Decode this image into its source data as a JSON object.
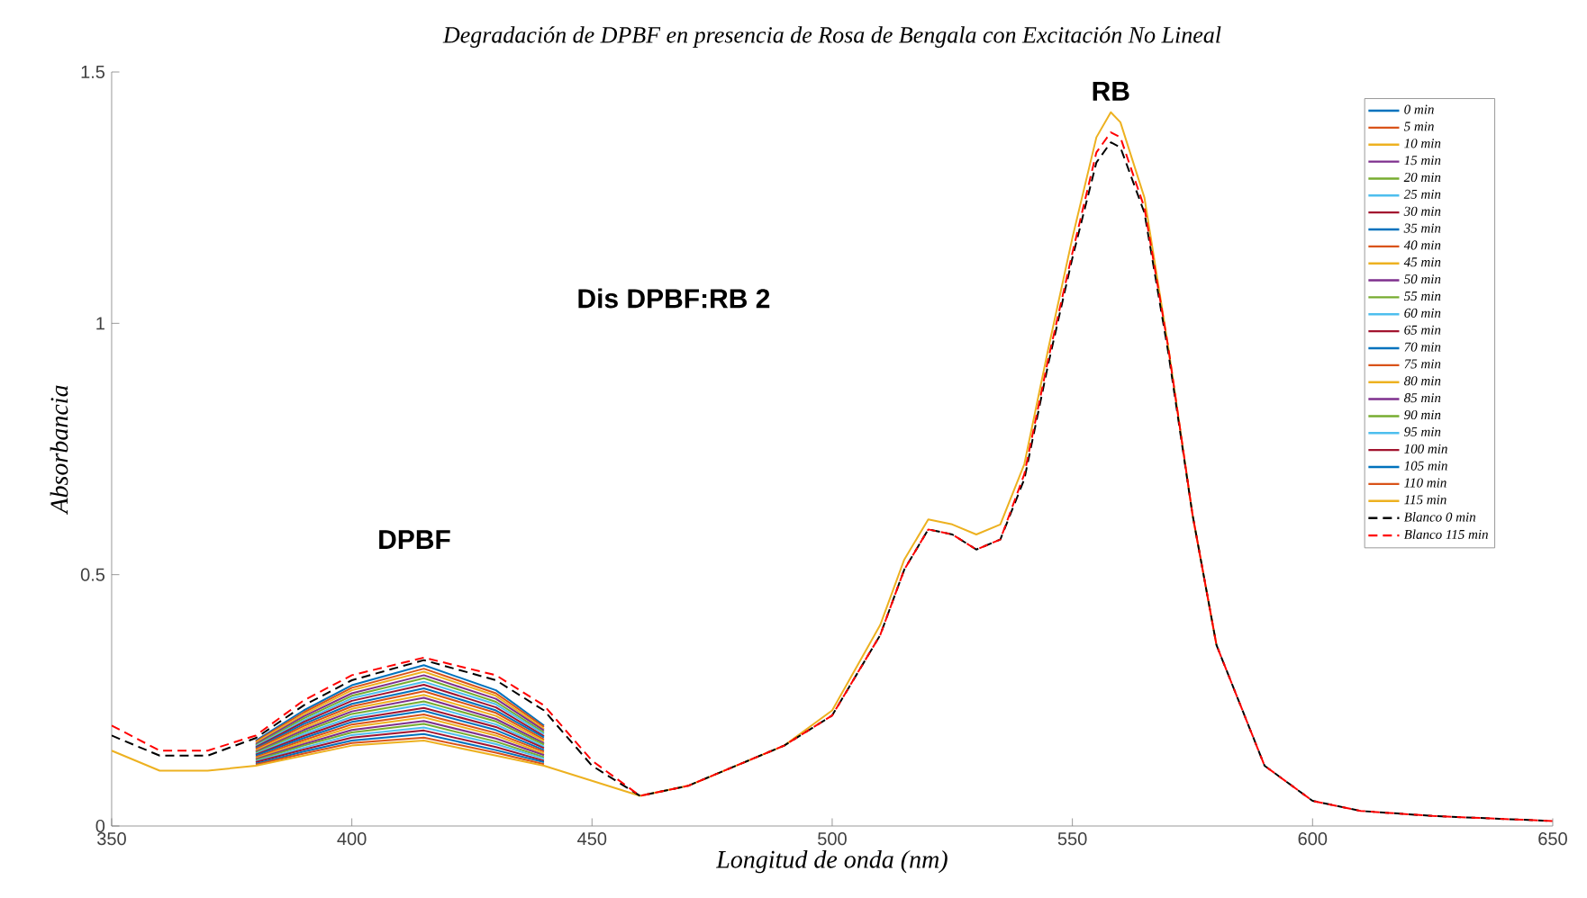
{
  "chart_data": {
    "type": "line",
    "title": "Degradación de DPBF en presencia de Rosa de Bengala con Excitación No Lineal",
    "xlabel": "Longitud de onda (nm)",
    "ylabel": "Absorbancia",
    "x": [
      350,
      360,
      370,
      380,
      390,
      400,
      415,
      430,
      440,
      450,
      460,
      470,
      480,
      490,
      500,
      510,
      515,
      520,
      525,
      530,
      535,
      540,
      545,
      550,
      555,
      558,
      560,
      565,
      570,
      575,
      580,
      590,
      600,
      610,
      625,
      650
    ],
    "xlim": [
      350,
      650
    ],
    "ylim": [
      0,
      1.5
    ],
    "xticks": [
      350,
      400,
      450,
      500,
      550,
      600,
      650
    ],
    "yticks": [
      0,
      0.5,
      1,
      1.5
    ],
    "legend": "top right",
    "annotations": [
      "Dis DPBF:RB 2",
      "DPBF",
      {
        "text": "RB",
        "x": 558,
        "y": 1.42
      }
    ],
    "series": [
      {
        "name": "0 min",
        "color": "#0072bd",
        "values": [
          null,
          null,
          null,
          0.17,
          0.23,
          0.28,
          0.32,
          0.27,
          0.2,
          null,
          null,
          null,
          null,
          null,
          null,
          null,
          null,
          null,
          null,
          null,
          null,
          null,
          null,
          null,
          null,
          null,
          null,
          null,
          null,
          null,
          null,
          null,
          null,
          null,
          null,
          null
        ]
      },
      {
        "name": "5 min",
        "color": "#d95319",
        "values": [
          null,
          null,
          null,
          0.168,
          0.226,
          0.275,
          0.313,
          0.264,
          0.197,
          null,
          null,
          null,
          null,
          null,
          null,
          null,
          null,
          null,
          null,
          null,
          null,
          null,
          null,
          null,
          null,
          null,
          null,
          null,
          null,
          null,
          null,
          null,
          null,
          null,
          null,
          null
        ]
      },
      {
        "name": "10 min",
        "color": "#edb120",
        "values": [
          null,
          null,
          null,
          0.166,
          0.222,
          0.27,
          0.307,
          0.259,
          0.193,
          null,
          null,
          null,
          null,
          null,
          null,
          null,
          null,
          null,
          null,
          null,
          null,
          null,
          null,
          null,
          null,
          null,
          null,
          null,
          null,
          null,
          null,
          null,
          null,
          null,
          null,
          null
        ]
      },
      {
        "name": "15 min",
        "color": "#7e2f8e",
        "values": [
          null,
          null,
          null,
          0.163,
          0.218,
          0.264,
          0.3,
          0.253,
          0.19,
          null,
          null,
          null,
          null,
          null,
          null,
          null,
          null,
          null,
          null,
          null,
          null,
          null,
          null,
          null,
          null,
          null,
          null,
          null,
          null,
          null,
          null,
          null,
          null,
          null,
          null,
          null
        ]
      },
      {
        "name": "20 min",
        "color": "#77ac30",
        "values": [
          null,
          null,
          null,
          0.161,
          0.214,
          0.259,
          0.294,
          0.247,
          0.186,
          null,
          null,
          null,
          null,
          null,
          null,
          null,
          null,
          null,
          null,
          null,
          null,
          null,
          null,
          null,
          null,
          null,
          null,
          null,
          null,
          null,
          null,
          null,
          null,
          null,
          null,
          null
        ]
      },
      {
        "name": "25 min",
        "color": "#4dbeee",
        "values": [
          null,
          null,
          null,
          0.159,
          0.21,
          0.254,
          0.287,
          0.242,
          0.183,
          null,
          null,
          null,
          null,
          null,
          null,
          null,
          null,
          null,
          null,
          null,
          null,
          null,
          null,
          null,
          null,
          null,
          null,
          null,
          null,
          null,
          null,
          null,
          null,
          null,
          null,
          null
        ]
      },
      {
        "name": "30 min",
        "color": "#a2142f",
        "values": [
          null,
          null,
          null,
          0.157,
          0.207,
          0.249,
          0.281,
          0.236,
          0.179,
          null,
          null,
          null,
          null,
          null,
          null,
          null,
          null,
          null,
          null,
          null,
          null,
          null,
          null,
          null,
          null,
          null,
          null,
          null,
          null,
          null,
          null,
          null,
          null,
          null,
          null,
          null
        ]
      },
      {
        "name": "35 min",
        "color": "#0072bd",
        "values": [
          null,
          null,
          null,
          0.155,
          0.203,
          0.243,
          0.274,
          0.23,
          0.176,
          null,
          null,
          null,
          null,
          null,
          null,
          null,
          null,
          null,
          null,
          null,
          null,
          null,
          null,
          null,
          null,
          null,
          null,
          null,
          null,
          null,
          null,
          null,
          null,
          null,
          null,
          null
        ]
      },
      {
        "name": "40 min",
        "color": "#d95319",
        "values": [
          null,
          null,
          null,
          0.153,
          0.199,
          0.238,
          0.268,
          0.225,
          0.172,
          null,
          null,
          null,
          null,
          null,
          null,
          null,
          null,
          null,
          null,
          null,
          null,
          null,
          null,
          null,
          null,
          null,
          null,
          null,
          null,
          null,
          null,
          null,
          null,
          null,
          null,
          null
        ]
      },
      {
        "name": "45 min",
        "color": "#edb120",
        "values": [
          null,
          null,
          null,
          0.15,
          0.195,
          0.233,
          0.261,
          0.219,
          0.169,
          null,
          null,
          null,
          null,
          null,
          null,
          null,
          null,
          null,
          null,
          null,
          null,
          null,
          null,
          null,
          null,
          null,
          null,
          null,
          null,
          null,
          null,
          null,
          null,
          null,
          null,
          null
        ]
      },
      {
        "name": "50 min",
        "color": "#7e2f8e",
        "values": [
          null,
          null,
          null,
          0.148,
          0.191,
          0.228,
          0.255,
          0.213,
          0.165,
          null,
          null,
          null,
          null,
          null,
          null,
          null,
          null,
          null,
          null,
          null,
          null,
          null,
          null,
          null,
          null,
          null,
          null,
          null,
          null,
          null,
          null,
          null,
          null,
          null,
          null,
          null
        ]
      },
      {
        "name": "55 min",
        "color": "#77ac30",
        "values": [
          null,
          null,
          null,
          0.146,
          0.187,
          0.223,
          0.248,
          0.208,
          0.162,
          null,
          null,
          null,
          null,
          null,
          null,
          null,
          null,
          null,
          null,
          null,
          null,
          null,
          null,
          null,
          null,
          null,
          null,
          null,
          null,
          null,
          null,
          null,
          null,
          null,
          null,
          null
        ]
      },
      {
        "name": "60 min",
        "color": "#4dbeee",
        "values": [
          null,
          null,
          null,
          0.144,
          0.183,
          0.217,
          0.242,
          0.202,
          0.158,
          null,
          null,
          null,
          null,
          null,
          null,
          null,
          null,
          null,
          null,
          null,
          null,
          null,
          null,
          null,
          null,
          null,
          null,
          null,
          null,
          null,
          null,
          null,
          null,
          null,
          null,
          null
        ]
      },
      {
        "name": "65 min",
        "color": "#a2142f",
        "values": [
          null,
          null,
          null,
          0.142,
          0.179,
          0.212,
          0.235,
          0.197,
          0.155,
          null,
          null,
          null,
          null,
          null,
          null,
          null,
          null,
          null,
          null,
          null,
          null,
          null,
          null,
          null,
          null,
          null,
          null,
          null,
          null,
          null,
          null,
          null,
          null,
          null,
          null,
          null
        ]
      },
      {
        "name": "70 min",
        "color": "#0072bd",
        "values": [
          null,
          null,
          null,
          0.14,
          0.175,
          0.207,
          0.229,
          0.191,
          0.151,
          null,
          null,
          null,
          null,
          null,
          null,
          null,
          null,
          null,
          null,
          null,
          null,
          null,
          null,
          null,
          null,
          null,
          null,
          null,
          null,
          null,
          null,
          null,
          null,
          null,
          null,
          null
        ]
      },
      {
        "name": "75 min",
        "color": "#d95319",
        "values": [
          null,
          null,
          null,
          0.137,
          0.171,
          0.202,
          0.222,
          0.185,
          0.148,
          null,
          null,
          null,
          null,
          null,
          null,
          null,
          null,
          null,
          null,
          null,
          null,
          null,
          null,
          null,
          null,
          null,
          null,
          null,
          null,
          null,
          null,
          null,
          null,
          null,
          null,
          null
        ]
      },
      {
        "name": "80 min",
        "color": "#edb120",
        "values": [
          null,
          null,
          null,
          0.135,
          0.167,
          0.197,
          0.216,
          0.18,
          0.144,
          null,
          null,
          null,
          null,
          null,
          null,
          null,
          null,
          null,
          null,
          null,
          null,
          null,
          null,
          null,
          null,
          null,
          null,
          null,
          null,
          null,
          null,
          null,
          null,
          null,
          null,
          null
        ]
      },
      {
        "name": "85 min",
        "color": "#7e2f8e",
        "values": [
          null,
          null,
          null,
          0.133,
          0.163,
          0.191,
          0.209,
          0.174,
          0.141,
          null,
          null,
          null,
          null,
          null,
          null,
          null,
          null,
          null,
          null,
          null,
          null,
          null,
          null,
          null,
          null,
          null,
          null,
          null,
          null,
          null,
          null,
          null,
          null,
          null,
          null,
          null
        ]
      },
      {
        "name": "90 min",
        "color": "#77ac30",
        "values": [
          null,
          null,
          null,
          0.131,
          0.16,
          0.186,
          0.203,
          0.168,
          0.137,
          null,
          null,
          null,
          null,
          null,
          null,
          null,
          null,
          null,
          null,
          null,
          null,
          null,
          null,
          null,
          null,
          null,
          null,
          null,
          null,
          null,
          null,
          null,
          null,
          null,
          null,
          null
        ]
      },
      {
        "name": "95 min",
        "color": "#4dbeee",
        "values": [
          null,
          null,
          null,
          0.129,
          0.156,
          0.181,
          0.196,
          0.163,
          0.134,
          null,
          null,
          null,
          null,
          null,
          null,
          null,
          null,
          null,
          null,
          null,
          null,
          null,
          null,
          null,
          null,
          null,
          null,
          null,
          null,
          null,
          null,
          null,
          null,
          null,
          null,
          null
        ]
      },
      {
        "name": "100 min",
        "color": "#a2142f",
        "values": [
          null,
          null,
          null,
          0.127,
          0.152,
          0.176,
          0.19,
          0.157,
          0.13,
          null,
          null,
          null,
          null,
          null,
          null,
          null,
          null,
          null,
          null,
          null,
          null,
          null,
          null,
          null,
          null,
          null,
          null,
          null,
          null,
          null,
          null,
          null,
          null,
          null,
          null,
          null
        ]
      },
      {
        "name": "105 min",
        "color": "#0072bd",
        "values": [
          null,
          null,
          null,
          0.124,
          0.148,
          0.17,
          0.183,
          0.151,
          0.127,
          null,
          null,
          null,
          null,
          null,
          null,
          null,
          null,
          null,
          null,
          null,
          null,
          null,
          null,
          null,
          null,
          null,
          null,
          null,
          null,
          null,
          null,
          null,
          null,
          null,
          null,
          null
        ]
      },
      {
        "name": "110 min",
        "color": "#d95319",
        "values": [
          null,
          null,
          null,
          0.122,
          0.144,
          0.165,
          0.176,
          0.146,
          0.123,
          null,
          null,
          null,
          null,
          null,
          null,
          null,
          null,
          null,
          null,
          null,
          null,
          null,
          null,
          null,
          null,
          null,
          null,
          null,
          null,
          null,
          null,
          null,
          null,
          null,
          null,
          null
        ]
      },
      {
        "name": "115 min",
        "color": "#edb120",
        "values": [
          0.15,
          0.11,
          0.11,
          0.12,
          0.14,
          0.16,
          0.17,
          0.14,
          0.12,
          0.09,
          0.06,
          0.08,
          0.12,
          0.16,
          0.23,
          0.4,
          0.53,
          0.61,
          0.6,
          0.58,
          0.6,
          0.72,
          0.95,
          1.17,
          1.37,
          1.42,
          1.4,
          1.25,
          0.95,
          0.62,
          0.36,
          null,
          null,
          null,
          null,
          null
        ]
      },
      {
        "name": "Blanco 0 min",
        "color": "#000000",
        "line_style": "dashed",
        "values": [
          0.18,
          0.14,
          0.14,
          0.175,
          0.24,
          0.29,
          0.33,
          0.29,
          0.23,
          0.12,
          0.06,
          0.08,
          0.12,
          0.16,
          0.22,
          0.38,
          0.51,
          0.59,
          0.58,
          0.55,
          0.57,
          0.69,
          0.92,
          1.13,
          1.32,
          1.36,
          1.35,
          1.22,
          0.94,
          0.62,
          0.36,
          0.12,
          0.05,
          0.03,
          0.02,
          0.01
        ]
      },
      {
        "name": "Blanco 115 min",
        "color": "#ff0000",
        "line_style": "dashed",
        "values": [
          0.2,
          0.15,
          0.15,
          0.18,
          0.25,
          0.3,
          0.335,
          0.3,
          0.24,
          0.13,
          0.06,
          0.08,
          0.12,
          0.16,
          0.22,
          0.38,
          0.51,
          0.59,
          0.58,
          0.55,
          0.57,
          0.7,
          0.93,
          1.14,
          1.34,
          1.38,
          1.37,
          1.23,
          0.95,
          0.62,
          0.36,
          0.12,
          0.05,
          0.03,
          0.02,
          0.01
        ]
      }
    ]
  }
}
